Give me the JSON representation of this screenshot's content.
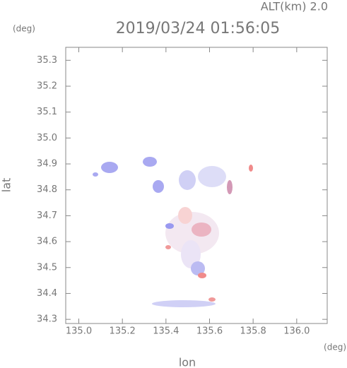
{
  "chart_data": {
    "type": "map",
    "title": "2019/03/24 01:56:05",
    "subtitle": "ALT(km) 2.0",
    "x_label": "lon",
    "x_unit": "(deg)",
    "y_label": "lat",
    "y_unit": "(deg)",
    "xlim": [
      134.94,
      136.14
    ],
    "ylim": [
      34.284,
      35.35
    ],
    "xticks": [
      {
        "value": 135.0,
        "label": "135.0"
      },
      135.2,
      135.4,
      135.6,
      135.8,
      {
        "value": 136.0,
        "label": "136.0"
      }
    ],
    "yticks": [
      34.3,
      34.4,
      34.5,
      34.6,
      34.7,
      34.8,
      34.9,
      {
        "value": 35.0,
        "label": "35.0"
      },
      35.1,
      35.2,
      35.3
    ]
  }
}
